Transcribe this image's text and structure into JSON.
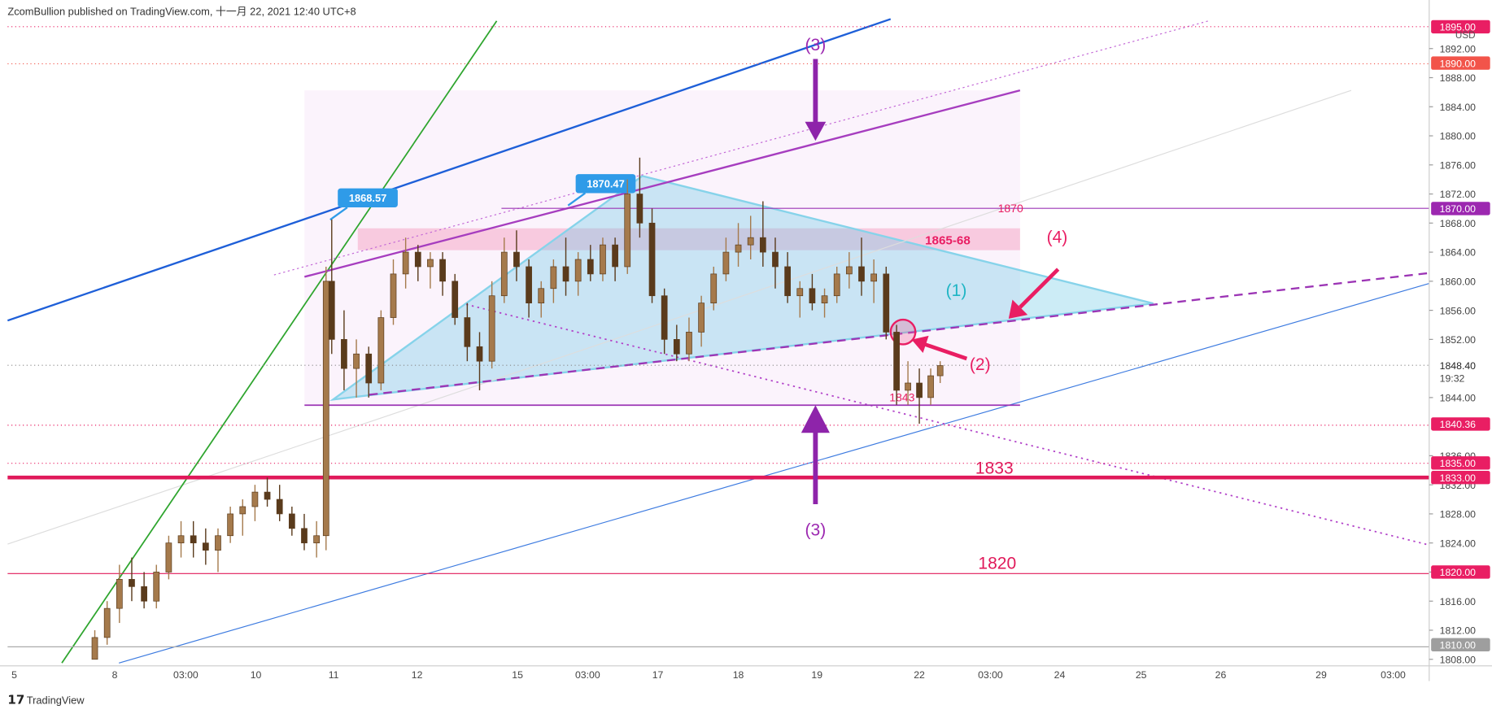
{
  "header": {
    "title": "ZcomBullion published on TradingView.com, 十一月 22, 2021 12:40 UTC+8"
  },
  "chart_data": {
    "type": "candlestick",
    "currency": "USD",
    "ylim": [
      1807.1,
      1895.8
    ],
    "yticks": [
      {
        "value": 1808,
        "label": "1808.00"
      },
      {
        "value": 1812,
        "label": "1812.00"
      },
      {
        "value": 1816,
        "label": "1816.00"
      },
      {
        "value": 1820,
        "label": "1820.00"
      },
      {
        "value": 1824,
        "label": "1824.00"
      },
      {
        "value": 1828,
        "label": "1828.00"
      },
      {
        "value": 1832,
        "label": "1832.00"
      },
      {
        "value": 1836,
        "label": "1836.00"
      },
      {
        "value": 1844,
        "label": "1844.00"
      },
      {
        "value": 1852,
        "label": "1852.00"
      },
      {
        "value": 1856,
        "label": "1856.00"
      },
      {
        "value": 1860,
        "label": "1860.00"
      },
      {
        "value": 1864,
        "label": "1864.00"
      },
      {
        "value": 1868,
        "label": "1868.00"
      },
      {
        "value": 1872,
        "label": "1872.00"
      },
      {
        "value": 1876,
        "label": "1876.00"
      },
      {
        "value": 1880,
        "label": "1880.00"
      },
      {
        "value": 1884,
        "label": "1884.00"
      },
      {
        "value": 1888,
        "label": "1888.00"
      },
      {
        "value": 1892,
        "label": "1892.00"
      }
    ],
    "xlim": [
      0,
      150
    ],
    "xticks": [
      {
        "value": 0.7,
        "label": "5"
      },
      {
        "value": 11.3,
        "label": "8"
      },
      {
        "value": 18.8,
        "label": "03:00"
      },
      {
        "value": 26.2,
        "label": "10"
      },
      {
        "value": 34.4,
        "label": "11"
      },
      {
        "value": 43.2,
        "label": "12"
      },
      {
        "value": 53.8,
        "label": "15"
      },
      {
        "value": 61.2,
        "label": "03:00"
      },
      {
        "value": 68.6,
        "label": "17"
      },
      {
        "value": 77.1,
        "label": "18"
      },
      {
        "value": 85.4,
        "label": "19"
      },
      {
        "value": 96.2,
        "label": "22"
      },
      {
        "value": 103.7,
        "label": "03:00"
      },
      {
        "value": 111,
        "label": "24"
      },
      {
        "value": 119.6,
        "label": "25"
      },
      {
        "value": 128,
        "label": "26"
      },
      {
        "value": 138.6,
        "label": "29"
      },
      {
        "value": 146.2,
        "label": "03:00"
      }
    ],
    "up_color": "#a57a4c",
    "down_color": "#5a3b1c",
    "candles": [
      [
        9.2,
        1808,
        1812,
        1808,
        1811
      ],
      [
        10.5,
        1811,
        1816,
        1810,
        1815
      ],
      [
        11.8,
        1815,
        1821,
        1813,
        1819
      ],
      [
        13.1,
        1819,
        1822,
        1816,
        1818
      ],
      [
        14.4,
        1818,
        1820,
        1815,
        1816
      ],
      [
        15.7,
        1816,
        1821,
        1815,
        1820
      ],
      [
        17.0,
        1820,
        1825,
        1819,
        1824
      ],
      [
        18.3,
        1824,
        1827,
        1822,
        1825
      ],
      [
        19.6,
        1825,
        1827,
        1822,
        1824
      ],
      [
        20.9,
        1824,
        1826,
        1821,
        1823
      ],
      [
        22.2,
        1823,
        1826,
        1820,
        1825
      ],
      [
        23.5,
        1825,
        1829,
        1824,
        1828
      ],
      [
        24.8,
        1828,
        1830,
        1825,
        1829
      ],
      [
        26.1,
        1829,
        1832,
        1827,
        1831
      ],
      [
        27.4,
        1831,
        1833,
        1829,
        1830
      ],
      [
        28.7,
        1830,
        1832,
        1827,
        1828
      ],
      [
        30.0,
        1828,
        1829,
        1825,
        1826
      ],
      [
        31.3,
        1826,
        1828,
        1823,
        1824
      ],
      [
        32.6,
        1824,
        1827,
        1822,
        1825
      ],
      [
        33.6,
        1825,
        1862,
        1823,
        1860
      ],
      [
        34.2,
        1860,
        1868.5,
        1850,
        1852
      ],
      [
        35.5,
        1852,
        1856,
        1845,
        1848
      ],
      [
        36.8,
        1848,
        1852,
        1844,
        1850
      ],
      [
        38.1,
        1850,
        1851,
        1844,
        1846
      ],
      [
        39.4,
        1846,
        1856,
        1845,
        1855
      ],
      [
        40.7,
        1855,
        1863,
        1854,
        1861
      ],
      [
        42.0,
        1861,
        1866,
        1859,
        1864
      ],
      [
        43.3,
        1864,
        1865,
        1860,
        1862
      ],
      [
        44.6,
        1862,
        1864,
        1859,
        1863
      ],
      [
        45.9,
        1863,
        1864,
        1858,
        1860
      ],
      [
        47.2,
        1860,
        1861,
        1854,
        1855
      ],
      [
        48.5,
        1855,
        1857,
        1849,
        1851
      ],
      [
        49.8,
        1851,
        1853,
        1845,
        1849
      ],
      [
        51.1,
        1849,
        1860,
        1848,
        1858
      ],
      [
        52.4,
        1858,
        1866,
        1857,
        1864
      ],
      [
        53.7,
        1864,
        1867,
        1860,
        1862
      ],
      [
        55.0,
        1862,
        1863,
        1855,
        1857
      ],
      [
        56.3,
        1857,
        1860,
        1855,
        1859
      ],
      [
        57.6,
        1859,
        1863,
        1857,
        1862
      ],
      [
        58.9,
        1862,
        1866,
        1858,
        1860
      ],
      [
        60.2,
        1860,
        1864,
        1858,
        1863
      ],
      [
        61.5,
        1863,
        1865,
        1860,
        1861
      ],
      [
        62.8,
        1861,
        1866,
        1860,
        1865
      ],
      [
        64.1,
        1865,
        1866,
        1860,
        1862
      ],
      [
        65.4,
        1862,
        1874,
        1861,
        1872
      ],
      [
        66.7,
        1872,
        1877,
        1866,
        1868
      ],
      [
        68.0,
        1868,
        1870,
        1857,
        1858
      ],
      [
        69.3,
        1858,
        1859,
        1850,
        1852
      ],
      [
        70.6,
        1852,
        1854,
        1849,
        1850
      ],
      [
        71.9,
        1850,
        1855,
        1849,
        1853
      ],
      [
        73.2,
        1853,
        1858,
        1851,
        1857
      ],
      [
        74.5,
        1857,
        1862,
        1856,
        1861
      ],
      [
        75.8,
        1861,
        1866,
        1860,
        1864
      ],
      [
        77.1,
        1864,
        1868,
        1862,
        1865
      ],
      [
        78.4,
        1865,
        1869,
        1863,
        1866
      ],
      [
        79.7,
        1866,
        1871,
        1862,
        1864
      ],
      [
        81.0,
        1864,
        1866,
        1859,
        1862
      ],
      [
        82.3,
        1862,
        1864,
        1857,
        1858
      ],
      [
        83.6,
        1858,
        1860,
        1855,
        1859
      ],
      [
        84.9,
        1859,
        1861,
        1856,
        1857
      ],
      [
        86.2,
        1857,
        1859,
        1855,
        1858
      ],
      [
        87.5,
        1858,
        1862,
        1857,
        1861
      ],
      [
        88.8,
        1861,
        1864,
        1859,
        1862
      ],
      [
        90.1,
        1862,
        1866,
        1858,
        1860
      ],
      [
        91.4,
        1860,
        1863,
        1857,
        1861
      ],
      [
        92.7,
        1861,
        1862,
        1852,
        1853
      ],
      [
        93.8,
        1853,
        1854,
        1843,
        1845
      ],
      [
        95.0,
        1845,
        1849,
        1843,
        1846
      ],
      [
        96.2,
        1846,
        1848,
        1840.4,
        1844
      ],
      [
        97.4,
        1844,
        1848,
        1843,
        1847
      ],
      [
        98.4,
        1847,
        1849,
        1846,
        1848.4
      ]
    ],
    "price_tags": [
      {
        "value": 1895,
        "label": "1895.00",
        "color": "#e91e63"
      },
      {
        "value": 1890,
        "label": "1890.00",
        "color": "#f2544a"
      },
      {
        "value": 1870,
        "label": "1870.00",
        "color": "#9c27b0"
      },
      {
        "value": 1848.4,
        "label": "1848.40",
        "color": "#f0f0f0"
      },
      {
        "value": 1840.36,
        "label": "1840.36",
        "color": "#e91e63"
      },
      {
        "value": 1835,
        "label": "1835.00",
        "color": "#e91e63"
      },
      {
        "value": 1833,
        "label": "1833.00",
        "color": "#e91e63"
      },
      {
        "value": 1820,
        "label": "1820.00",
        "color": "#e91e63"
      },
      {
        "value": 1810,
        "label": "1810.00",
        "color": "#9e9e9e"
      }
    ],
    "countdown": "19:32",
    "callouts": [
      1868.57,
      1870.47
    ],
    "annotations": {
      "zone": "1865-68",
      "level_1870": 1870,
      "level_1843": 1843,
      "level_1833": 1833,
      "level_1820": 1820,
      "mark_1": "(1)",
      "mark_2": "(2)",
      "mark_3": "(3)",
      "mark_4": "(4)"
    }
  },
  "footer": {
    "brand": "TradingView"
  }
}
